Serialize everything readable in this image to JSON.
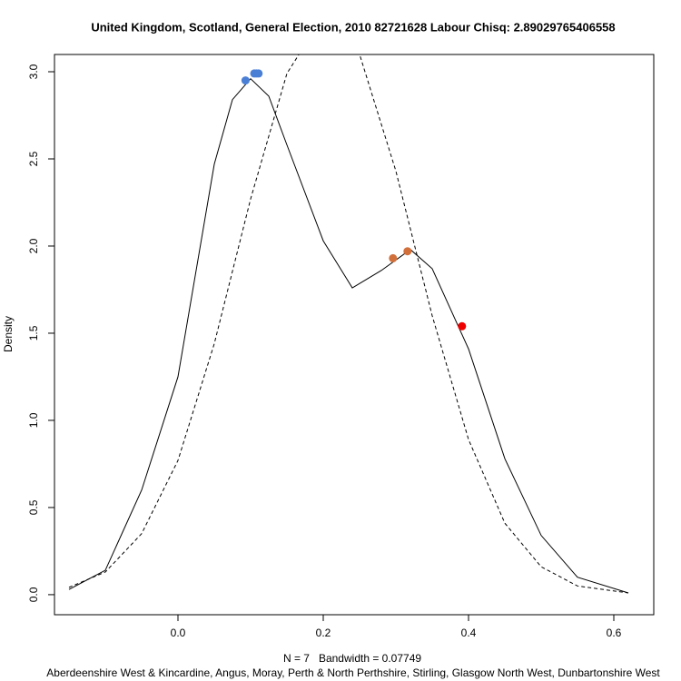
{
  "chart_data": {
    "type": "line",
    "title": "United Kingdom, Scotland, General Election, 2010 82721628 Labour Chisq: 2.89029765406558",
    "x_label": "N = 7   Bandwidth = 0.07749",
    "subtitle": "Aberdeenshire West & Kincardine, Angus, Moray, Perth & North Perthshire, Stirling, Glasgow North West, Dunbartonshire West",
    "y_label": "Density",
    "xlim": [
      -0.17,
      0.655
    ],
    "ylim": [
      -0.115,
      3.099
    ],
    "xticks": [
      {
        "value": 0,
        "label": "0.0"
      },
      {
        "value": 0.2,
        "label": "0.2"
      },
      {
        "value": 0.4,
        "label": "0.4"
      },
      {
        "value": 0.6,
        "label": "0.6"
      }
    ],
    "yticks": [
      {
        "value": 0,
        "label": "0.0"
      },
      {
        "value": 0.5,
        "label": "0.5"
      },
      {
        "value": 1,
        "label": "1.0"
      },
      {
        "value": 1.5,
        "label": "1.5"
      },
      {
        "value": 2,
        "label": "2.0"
      },
      {
        "value": 2.5,
        "label": "2.5"
      },
      {
        "value": 3,
        "label": "3.0"
      }
    ],
    "series": [
      {
        "color": "#000000",
        "dashed": false,
        "x": [
          -0.15,
          -0.1,
          -0.05,
          0,
          0.05,
          0.075,
          0.1,
          0.125,
          0.15,
          0.2,
          0.24,
          0.28,
          0.32,
          0.35,
          0.4,
          0.45,
          0.5,
          0.55,
          0.62
        ],
        "y": [
          0.03,
          0.14,
          0.6,
          1.25,
          2.47,
          2.84,
          2.96,
          2.86,
          2.58,
          2.03,
          1.76,
          1.86,
          1.98,
          1.87,
          1.41,
          0.78,
          0.34,
          0.1,
          0.01
        ]
      },
      {
        "color": "#000000",
        "dashed": true,
        "x": [
          -0.15,
          -0.1,
          -0.05,
          0,
          0.05,
          0.1,
          0.15,
          0.2,
          0.25,
          0.3,
          0.35,
          0.4,
          0.45,
          0.5,
          0.55,
          0.62
        ],
        "y": [
          0.042,
          0.13,
          0.35,
          0.77,
          1.44,
          2.27,
          2.99,
          3.32,
          3.1,
          2.43,
          1.6,
          0.89,
          0.41,
          0.16,
          0.05,
          0.01
        ]
      }
    ],
    "points": {
      "x": [
        0.093,
        0.105,
        0.108,
        0.111,
        0.296,
        0.316,
        0.391
      ],
      "y": [
        2.95,
        2.99,
        2.99,
        2.99,
        1.93,
        1.97,
        1.54
      ],
      "colors": [
        "#4a7fd6",
        "#4a7fd6",
        "#4a7fd6",
        "#4a7fd6",
        "#d2703c",
        "#d2703c",
        "#ee0000"
      ]
    }
  }
}
